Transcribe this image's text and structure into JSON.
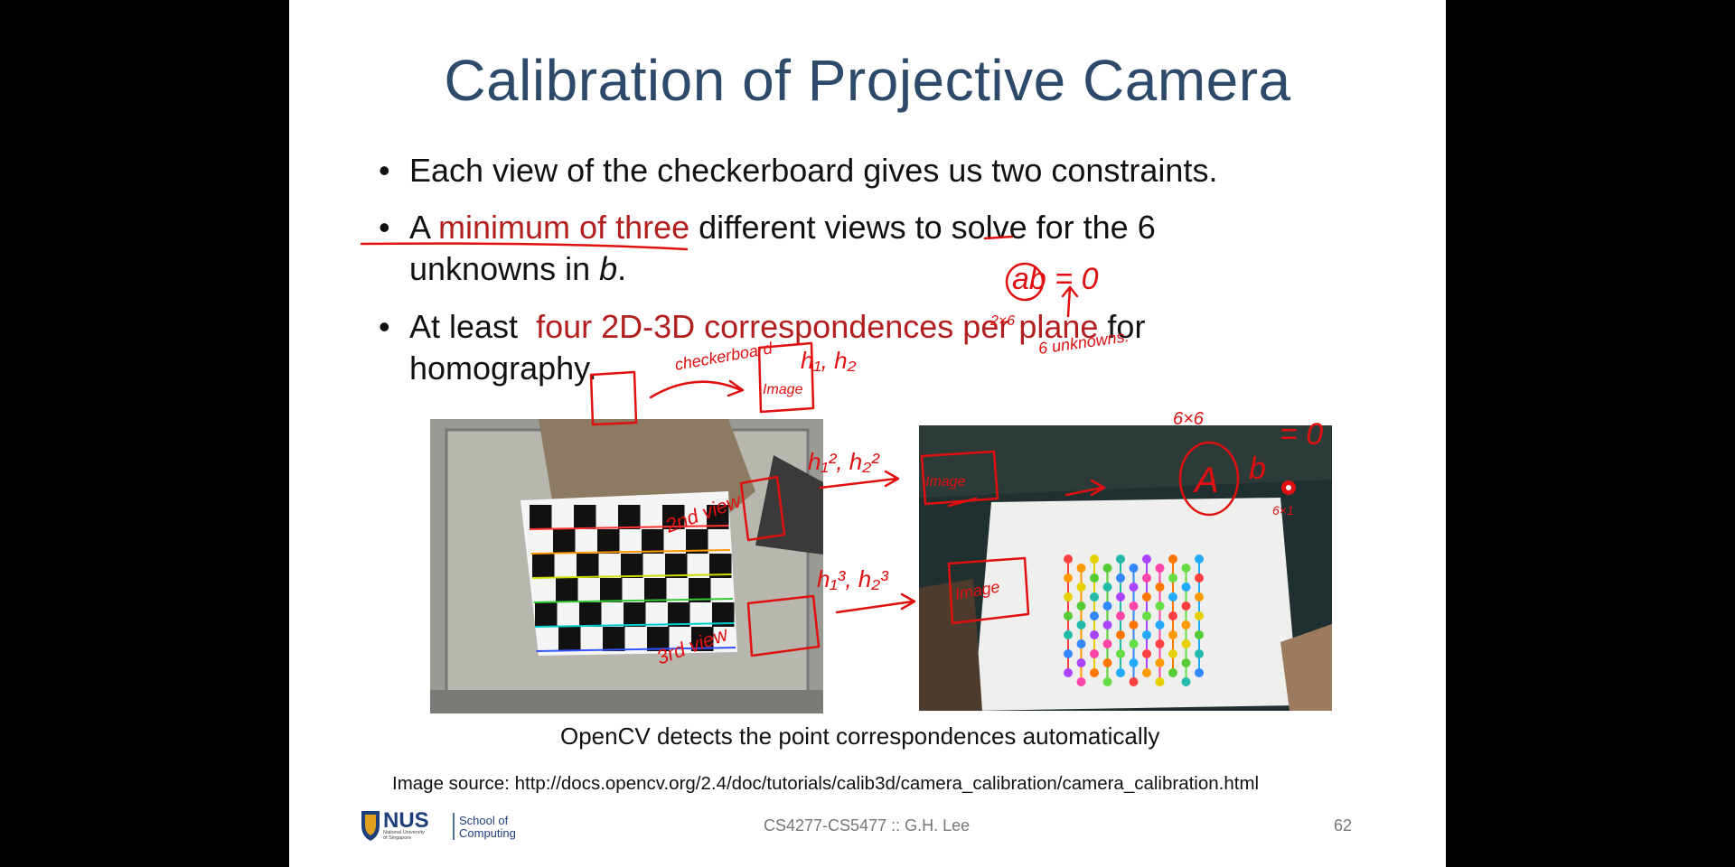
{
  "slide": {
    "title": "Calibration of Projective Camera",
    "bullets": [
      {
        "parts": [
          "Each view of the checkerboard gives us two constraints."
        ]
      },
      {
        "line1_a": "A ",
        "line1_red": "minimum of three",
        "line1_b": " different views to solve for the 6",
        "line2_a": "unknowns in ",
        "line2_italic": "b",
        "line2_b": "."
      },
      {
        "line1_a": "At least  ",
        "line1_red": "four 2D-3D correspondences per plane",
        "line1_b": " for",
        "line2": "homography."
      }
    ],
    "caption": "OpenCV detects the point correspondences automatically",
    "image_source_label": "Image source:",
    "image_source_url": "http://docs.opencv.org/2.4/doc/tutorials/calib3d/camera_calibration/camera_calibration.html",
    "footer_course": "CS4277-CS5477 :: G.H. Lee",
    "page_number": "62",
    "logo": {
      "nus": "NUS",
      "nus_sub1": "National University",
      "nus_sub2": "of Singapore",
      "school1": "School of",
      "school2": "Computing"
    }
  },
  "annotations": {
    "checkerboard": "checkerboard",
    "h12": "h₁, h₂",
    "image": "Image",
    "ab0": "ab = 0",
    "dims": "2×6",
    "unknowns": "6 unknowns.",
    "view2": "2nd view",
    "view3": "3rd view",
    "dim66": "6×6",
    "A": "A",
    "b": "b",
    "eq0": "= 0",
    "dim61": "6×1",
    "h1_2": "h₁², h₂²",
    "h1_3": "h₁³, h₂³",
    "image2": "Image",
    "image3": "Image"
  },
  "colors": {
    "title": "#2e4a6b",
    "accent_red": "#b21f1f",
    "ink": "#e01010"
  }
}
